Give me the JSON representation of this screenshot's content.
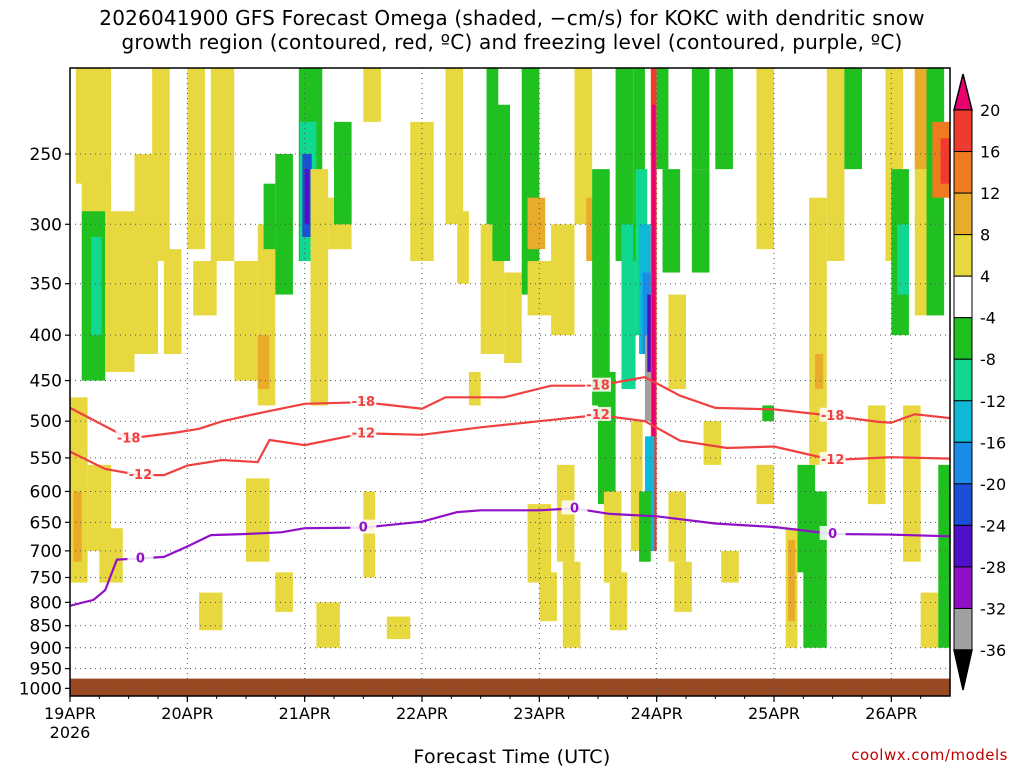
{
  "title_line1": "2026041900 GFS Forecast Omega (shaded, −cm/s) for KOKC with dendritic snow",
  "title_line2": "growth region (contoured, red, ºC) and freezing level (contoured, purple, ºC)",
  "credit": "coolwx.com/models",
  "chart_data": {
    "type": "heatmap",
    "title": "2026041900 GFS Forecast Omega (shaded, −cm/s) for KOKC with dendritic snow growth region (contoured, red, ºC) and freezing level (contoured, purple, ºC)",
    "xlabel": "Forecast Time (UTC)",
    "ylabel": "",
    "x_tick_labels": [
      "19APR",
      "20APR",
      "21APR",
      "22APR",
      "23APR",
      "24APR",
      "25APR",
      "26APR"
    ],
    "x_start_year_label": "2026",
    "x_range_days_after_19APR": [
      0,
      7.5
    ],
    "y_tick_labels": [
      250,
      300,
      350,
      400,
      450,
      500,
      550,
      600,
      650,
      700,
      750,
      800,
      850,
      900,
      950,
      1000
    ],
    "y_range_hpa": [
      200,
      1020
    ],
    "y_scale": "log-pressure (reversed)",
    "grid": "dotted at every tick",
    "colorbar": {
      "labels": [
        "20",
        "16",
        "12",
        "8",
        "4",
        "-4",
        "-8",
        "-12",
        "-16",
        "-20",
        "-24",
        "-28",
        "-32",
        "-36"
      ],
      "colors": [
        "#e8006e",
        "#f03a30",
        "#f07a20",
        "#e8ac2a",
        "#e8d840",
        "#ffffff",
        "#20c020",
        "#10d890",
        "#10b8d8",
        "#1a8ce8",
        "#1a50d8",
        "#5010c8",
        "#9010c8",
        "#a0a0a0",
        "#000000"
      ]
    },
    "ground_color": "#9a4a22",
    "contours": [
      {
        "label": "-18",
        "color": "#f04040",
        "points": [
          [
            0.0,
            483
          ],
          [
            0.5,
            523
          ],
          [
            0.9,
            515
          ],
          [
            1.1,
            510
          ],
          [
            1.3,
            500
          ],
          [
            1.6,
            490
          ],
          [
            2.0,
            478
          ],
          [
            2.5,
            476
          ],
          [
            3.0,
            484
          ],
          [
            3.2,
            470
          ],
          [
            3.7,
            470
          ],
          [
            4.1,
            456
          ],
          [
            4.5,
            456
          ],
          [
            4.9,
            446
          ],
          [
            5.2,
            468
          ],
          [
            5.5,
            483
          ],
          [
            6.0,
            485
          ],
          [
            6.5,
            493
          ],
          [
            6.9,
            501
          ],
          [
            7.0,
            502
          ],
          [
            7.2,
            491
          ],
          [
            7.5,
            496
          ]
        ]
      },
      {
        "label": "-12",
        "color": "#f04040",
        "points": [
          [
            0.0,
            541
          ],
          [
            0.3,
            566
          ],
          [
            0.6,
            575
          ],
          [
            0.8,
            575
          ],
          [
            1.0,
            561
          ],
          [
            1.3,
            553
          ],
          [
            1.6,
            556
          ],
          [
            1.7,
            525
          ],
          [
            2.0,
            532
          ],
          [
            2.5,
            516
          ],
          [
            3.0,
            518
          ],
          [
            3.5,
            508
          ],
          [
            4.0,
            500
          ],
          [
            4.5,
            492
          ],
          [
            4.9,
            500
          ],
          [
            5.2,
            526
          ],
          [
            5.6,
            536
          ],
          [
            6.0,
            534
          ],
          [
            6.5,
            553
          ],
          [
            7.0,
            549
          ],
          [
            7.5,
            551
          ]
        ]
      },
      {
        "label": "0",
        "color": "#9010c8",
        "points": [
          [
            0.0,
            807
          ],
          [
            0.2,
            795
          ],
          [
            0.3,
            775
          ],
          [
            0.4,
            716
          ],
          [
            0.6,
            714
          ],
          [
            0.8,
            711
          ],
          [
            1.0,
            692
          ],
          [
            1.2,
            672
          ],
          [
            1.5,
            670
          ],
          [
            1.8,
            667
          ],
          [
            2.0,
            660
          ],
          [
            2.5,
            659
          ],
          [
            3.0,
            649
          ],
          [
            3.3,
            633
          ],
          [
            3.5,
            630
          ],
          [
            4.0,
            630
          ],
          [
            4.3,
            627
          ],
          [
            4.6,
            636
          ],
          [
            5.0,
            640
          ],
          [
            5.5,
            652
          ],
          [
            6.0,
            658
          ],
          [
            6.3,
            665
          ],
          [
            6.5,
            670
          ],
          [
            7.0,
            671
          ],
          [
            7.5,
            674
          ]
        ]
      }
    ],
    "notes": "Shaded field is 2D omega (-cm/s); values approximated from visible color patches."
  }
}
